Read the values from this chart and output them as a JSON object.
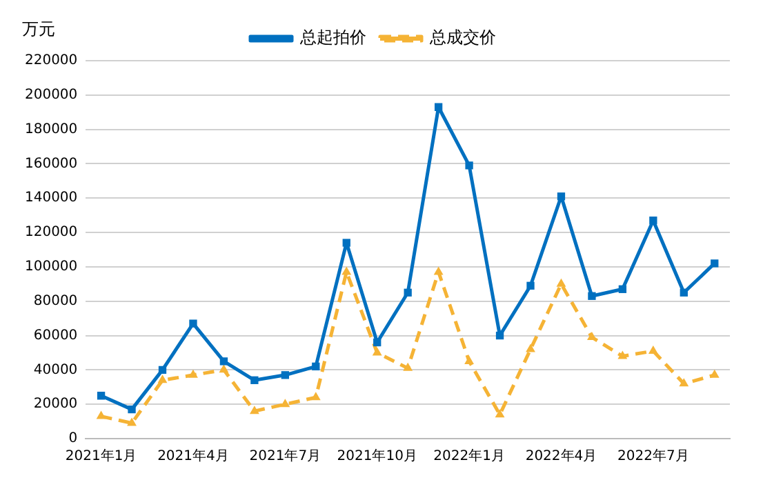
{
  "chart_data": {
    "type": "line",
    "ylabel": "万元",
    "categories": [
      "2021年1月",
      null,
      null,
      "2021年4月",
      null,
      null,
      "2021年7月",
      null,
      null,
      "2021年10月",
      null,
      null,
      "2022年1月",
      null,
      null,
      "2022年4月",
      null,
      null,
      "2022年7月",
      null,
      null
    ],
    "series": [
      {
        "name": "总起拍价",
        "color": "#0070c0",
        "marker": "square",
        "line_style": "solid",
        "values": [
          25000,
          17000,
          40000,
          67000,
          45000,
          34000,
          37000,
          42000,
          114000,
          56000,
          85000,
          193000,
          159000,
          60000,
          89000,
          141000,
          83000,
          87000,
          127000,
          85000,
          102000
        ]
      },
      {
        "name": "总成交价",
        "color": "#f5b335",
        "marker": "triangle",
        "line_style": "dashed",
        "values": [
          13000,
          9000,
          34000,
          37000,
          40000,
          16000,
          20000,
          24000,
          97000,
          50000,
          41000,
          97000,
          45000,
          14000,
          52000,
          90000,
          59000,
          48000,
          51000,
          32000,
          37000
        ]
      }
    ],
    "ylim": [
      0,
      220000
    ],
    "yticks": [
      0,
      20000,
      40000,
      60000,
      80000,
      100000,
      120000,
      140000,
      160000,
      180000,
      200000,
      220000
    ],
    "grid": "y",
    "legend": "top"
  }
}
